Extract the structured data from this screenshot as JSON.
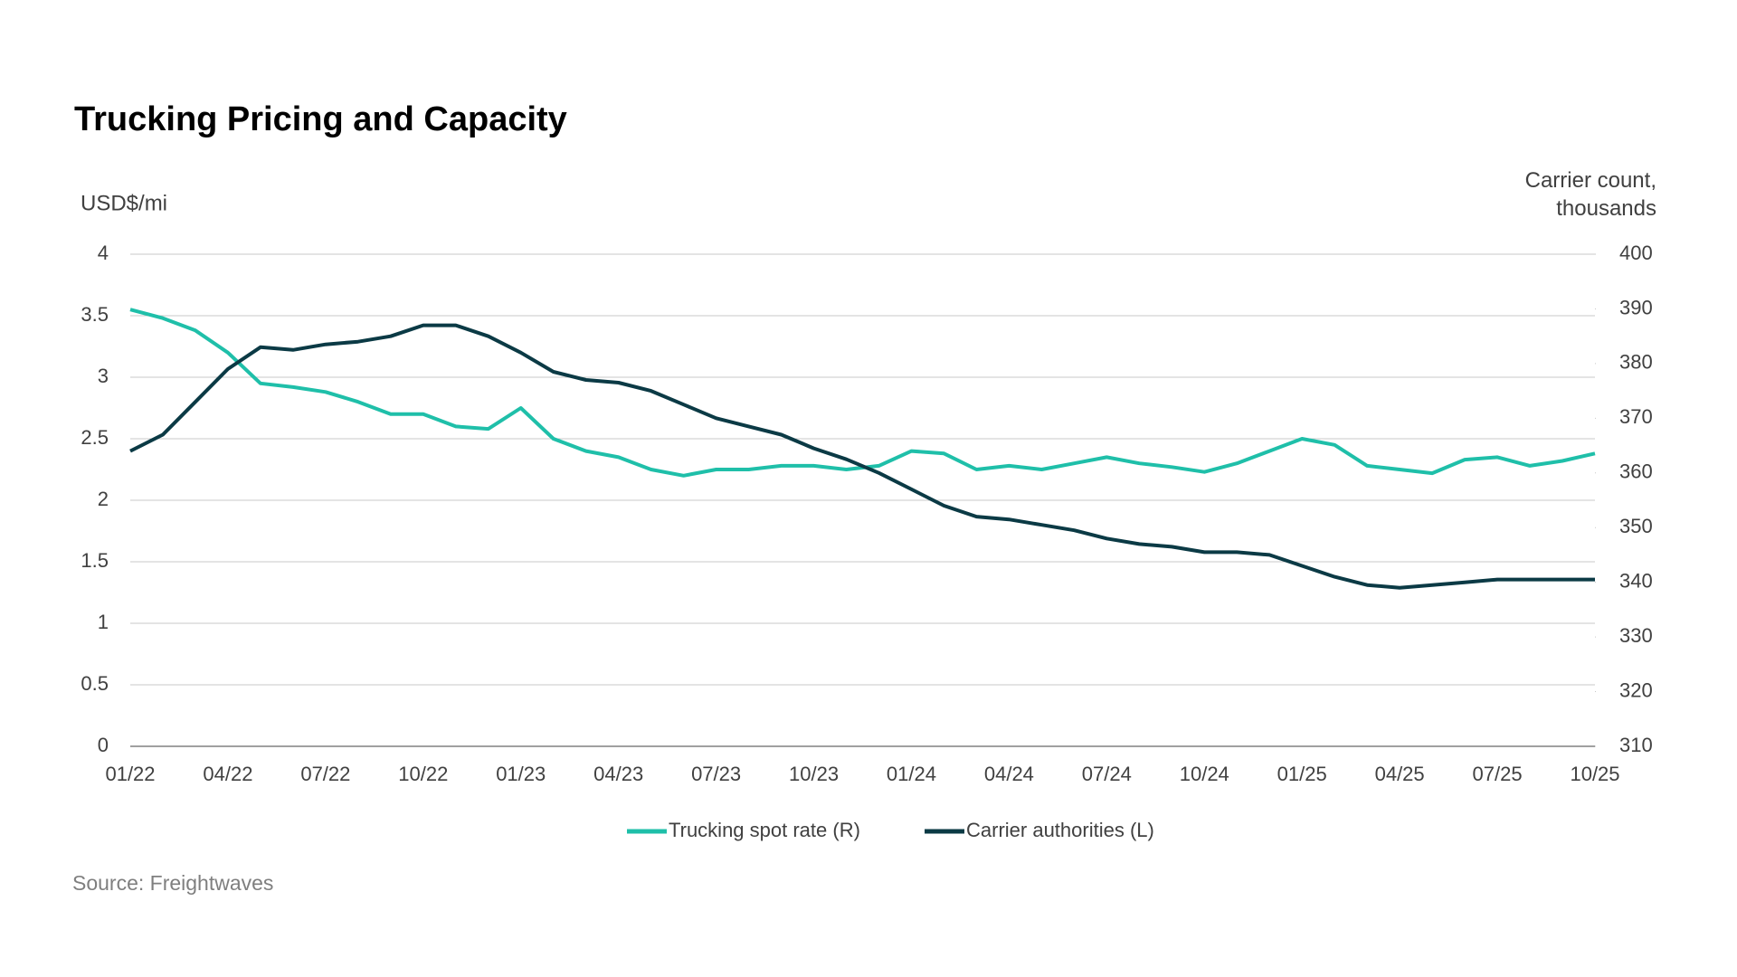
{
  "chart_data": {
    "type": "line",
    "title": "Trucking Pricing and Capacity",
    "y_label": "USD$/mi",
    "y2_label": "Carrier count, thousands",
    "source": "Source: Freightwaves",
    "categories": [
      "01/22",
      null,
      null,
      "04/22",
      null,
      null,
      "07/22",
      null,
      null,
      "10/22",
      null,
      null,
      "01/23",
      null,
      null,
      "04/23",
      null,
      null,
      "07/23",
      null,
      null,
      "10/23",
      null,
      null,
      "01/24",
      null,
      null,
      "04/24",
      null,
      null,
      "07/24",
      null,
      null,
      "10/24",
      null,
      null,
      "01/25",
      null,
      null,
      "04/25",
      null,
      null,
      "07/25",
      null,
      null,
      "10/25"
    ],
    "series": [
      {
        "name": "Trucking spot rate (R)",
        "color": "#1fbfa9",
        "values": [
          3.55,
          3.48,
          3.38,
          3.2,
          2.95,
          2.92,
          2.88,
          2.8,
          2.7,
          2.7,
          2.6,
          2.58,
          2.75,
          2.5,
          2.4,
          2.35,
          2.25,
          2.2,
          2.25,
          2.25,
          2.28,
          2.28,
          2.25,
          2.28,
          2.4,
          2.38,
          2.25,
          2.28,
          2.25,
          2.3,
          2.35,
          2.3,
          2.27,
          2.23,
          2.3,
          2.4,
          2.5,
          2.45,
          2.28,
          2.25,
          2.22,
          2.33,
          2.35,
          2.28,
          2.32,
          2.38
        ]
      },
      {
        "name": "Carrier authorities (L)",
        "color": "#0b3a45",
        "axis": "y2",
        "values": [
          364,
          367,
          373,
          379,
          383,
          382.5,
          383.5,
          384,
          385,
          387,
          387,
          385,
          382,
          378.5,
          377,
          376.5,
          375,
          372.5,
          370,
          368.5,
          367,
          364.5,
          362.5,
          360,
          357,
          354,
          352,
          351.5,
          350.5,
          349.5,
          348,
          347,
          346.5,
          345.5,
          345.5,
          345,
          343,
          341,
          339.5,
          339,
          339.5,
          340,
          340.5,
          340.5,
          340.5,
          340.5
        ]
      }
    ],
    "ylim": [
      0,
      4
    ],
    "yticks": [
      0,
      0.5,
      1,
      1.5,
      2,
      2.5,
      3,
      3.5,
      4
    ],
    "y2lim": [
      310,
      400
    ],
    "y2ticks": [
      310,
      320,
      330,
      340,
      350,
      360,
      370,
      380,
      390,
      400
    ],
    "grid": true
  }
}
